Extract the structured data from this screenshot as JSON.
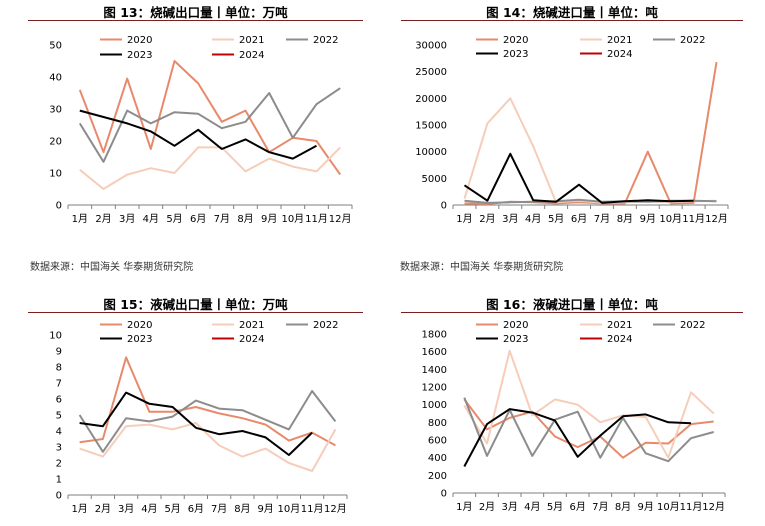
{
  "months": [
    "1月",
    "2月",
    "3月",
    "4月",
    "5月",
    "6月",
    "7月",
    "8月",
    "9月",
    "10月",
    "11月",
    "12月"
  ],
  "colors": {
    "2020": "#e8896b",
    "2021": "#f6cdb8",
    "2022": "#8c8c8c",
    "2023": "#000000",
    "2024": "#c00000"
  },
  "chart_data": [
    {
      "type": "line",
      "title": "图 13：烧碱出口量丨单位：万吨",
      "ylim": [
        0,
        50
      ],
      "yticks": [
        0,
        10,
        20,
        30,
        40,
        50
      ],
      "categories": [
        "1月",
        "2月",
        "3月",
        "4月",
        "5月",
        "6月",
        "7月",
        "8月",
        "9月",
        "10月",
        "11月",
        "12月"
      ],
      "series": [
        {
          "name": "2020",
          "values": [
            36,
            16.5,
            39.5,
            17.5,
            45,
            38,
            26,
            29.5,
            16.5,
            21,
            20,
            9.5
          ]
        },
        {
          "name": "2021",
          "values": [
            11,
            5,
            9.5,
            11.5,
            10,
            18,
            18,
            10.5,
            14.5,
            12,
            10.5,
            18
          ]
        },
        {
          "name": "2022",
          "values": [
            25.5,
            13.5,
            29.5,
            25.5,
            29,
            28.5,
            24,
            26,
            35,
            21,
            31.5,
            36.5
          ]
        },
        {
          "name": "2023",
          "values": [
            29.5,
            27.5,
            25.5,
            23,
            18.5,
            23.5,
            17.5,
            20.5,
            16.5,
            14.5,
            18.5,
            null
          ]
        },
        {
          "name": "2024",
          "values": [
            null,
            null,
            null,
            null,
            null,
            null,
            null,
            null,
            null,
            null,
            null,
            null
          ]
        }
      ],
      "source": "数据来源：中国海关 华泰期货研究院"
    },
    {
      "type": "line",
      "title": "图 14：烧碱进口量丨单位：吨",
      "ylim": [
        0,
        30000
      ],
      "yticks": [
        0,
        5000,
        10000,
        15000,
        20000,
        25000,
        30000
      ],
      "categories": [
        "1月",
        "2月",
        "3月",
        "4月",
        "5月",
        "6月",
        "7月",
        "8月",
        "9月",
        "10月",
        "11月",
        "12月"
      ],
      "series": [
        {
          "name": "2020",
          "values": [
            300,
            200,
            600,
            500,
            300,
            500,
            300,
            300,
            10000,
            300,
            400,
            26800
          ]
        },
        {
          "name": "2021",
          "values": [
            1200,
            15300,
            20000,
            11000,
            500,
            800,
            400,
            500,
            700,
            500,
            700,
            800
          ]
        },
        {
          "name": "2022",
          "values": [
            800,
            400,
            500,
            600,
            700,
            1000,
            600,
            700,
            600,
            800,
            800,
            700
          ]
        },
        {
          "name": "2023",
          "values": [
            3700,
            800,
            9600,
            900,
            600,
            3800,
            400,
            700,
            900,
            700,
            800,
            null
          ]
        },
        {
          "name": "2024",
          "values": [
            null,
            null,
            null,
            null,
            null,
            null,
            null,
            null,
            null,
            null,
            null,
            null
          ]
        }
      ],
      "source": "数据来源：中国海关 华泰期货研究院"
    },
    {
      "type": "line",
      "title": "图 15：液碱出口量丨单位：万吨",
      "ylim": [
        0,
        10
      ],
      "yticks": [
        0,
        1,
        2,
        3,
        4,
        5,
        6,
        7,
        8,
        9,
        10
      ],
      "categories": [
        "1月",
        "2月",
        "3月",
        "4月",
        "5月",
        "6月",
        "7月",
        "8月",
        "9月",
        "10月",
        "11月",
        "12月"
      ],
      "series": [
        {
          "name": "2020",
          "values": [
            3.3,
            3.5,
            8.6,
            5.2,
            5.2,
            5.5,
            5.1,
            4.8,
            4.4,
            3.4,
            3.9,
            3.1
          ]
        },
        {
          "name": "2021",
          "values": [
            2.9,
            2.4,
            4.3,
            4.4,
            4.1,
            4.5,
            3.1,
            2.4,
            2.9,
            2.0,
            1.5,
            4.1
          ]
        },
        {
          "name": "2022",
          "values": [
            5.0,
            2.7,
            4.8,
            4.6,
            4.9,
            5.9,
            5.4,
            5.3,
            4.7,
            4.1,
            6.5,
            4.6
          ]
        },
        {
          "name": "2023",
          "values": [
            4.5,
            4.3,
            6.4,
            5.7,
            5.5,
            4.2,
            3.8,
            4.0,
            3.6,
            2.5,
            3.9,
            null
          ]
        },
        {
          "name": "2024",
          "values": [
            null,
            null,
            null,
            null,
            null,
            null,
            null,
            null,
            null,
            null,
            null,
            null
          ]
        }
      ],
      "source": "数据来源：中国海关 华泰期货研究院"
    },
    {
      "type": "line",
      "title": "图 16：液碱进口量丨单位：吨",
      "ylim": [
        0,
        1800
      ],
      "yticks": [
        0,
        200,
        400,
        600,
        800,
        1000,
        1200,
        1400,
        1600,
        1800
      ],
      "categories": [
        "1月",
        "2月",
        "3月",
        "4月",
        "5月",
        "6月",
        "7月",
        "8月",
        "9月",
        "10月",
        "11月",
        "12月"
      ],
      "series": [
        {
          "name": "2020",
          "values": [
            1060,
            720,
            850,
            920,
            640,
            520,
            640,
            400,
            570,
            560,
            780,
            810
          ]
        },
        {
          "name": "2021",
          "values": [
            990,
            560,
            1610,
            880,
            1060,
            1000,
            800,
            880,
            860,
            400,
            1140,
            900
          ]
        },
        {
          "name": "2022",
          "values": [
            1080,
            420,
            940,
            420,
            830,
            920,
            400,
            850,
            450,
            360,
            620,
            690
          ]
        },
        {
          "name": "2023",
          "values": [
            300,
            780,
            950,
            910,
            820,
            410,
            650,
            870,
            890,
            800,
            790,
            null
          ]
        },
        {
          "name": "2024",
          "values": [
            null,
            null,
            null,
            null,
            null,
            null,
            null,
            null,
            null,
            null,
            null,
            null
          ]
        }
      ],
      "source": "数据来源：中国海关 华泰期货研究院"
    }
  ]
}
